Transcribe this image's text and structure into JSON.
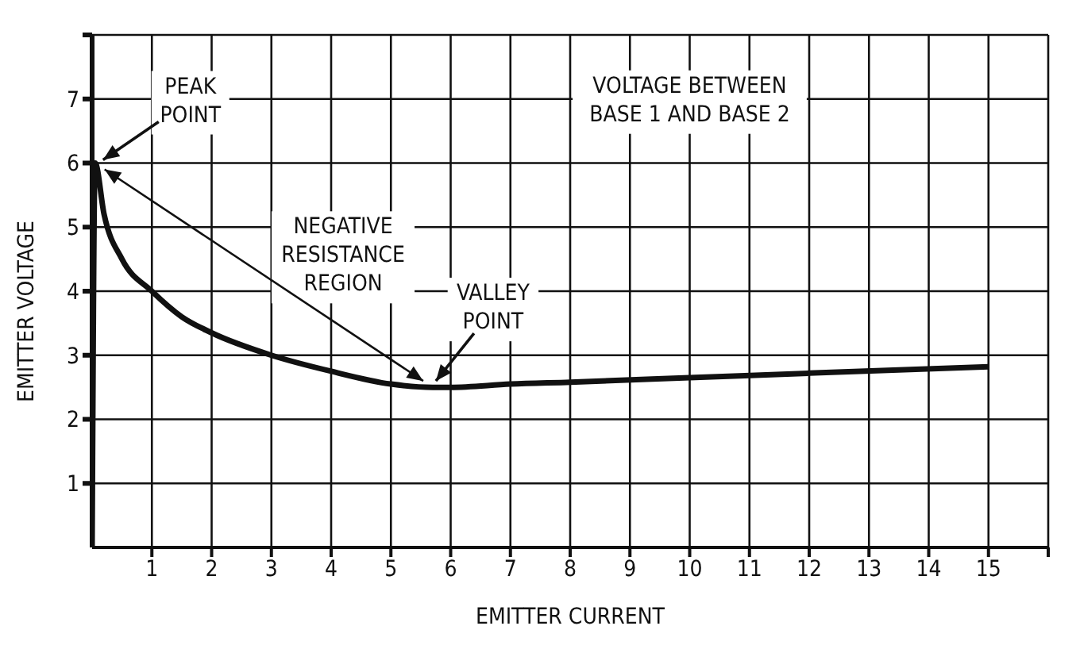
{
  "chart_data": {
    "type": "line",
    "xlabel": "EMITTER CURRENT",
    "ylabel": "EMITTER VOLTAGE",
    "x": [
      0,
      0.05,
      0.2,
      0.5,
      1,
      1.5,
      2,
      3,
      4,
      5,
      5.7,
      6,
      7,
      8,
      10,
      12,
      15
    ],
    "series": [
      {
        "color": "#111111",
        "values": [
          0,
          6,
          5.2,
          4.5,
          4.0,
          3.6,
          3.35,
          3.0,
          2.75,
          2.55,
          2.5,
          2.5,
          2.55,
          2.58,
          2.65,
          2.72,
          2.82
        ]
      }
    ],
    "xlim": [
      0,
      16
    ],
    "ylim": [
      0,
      8
    ],
    "xticks": [
      1,
      2,
      3,
      4,
      5,
      6,
      7,
      8,
      9,
      10,
      11,
      12,
      13,
      14,
      15,
      {
        "value": 16,
        "label": null
      }
    ],
    "yticks": [
      1,
      2,
      3,
      4,
      5,
      6,
      7,
      {
        "value": 8,
        "label": null
      }
    ],
    "grid": true,
    "marker": "none",
    "line_style": "solid",
    "annotations": [
      {
        "text": "PEAK\nPOINT",
        "x": 0.05,
        "y": 6
      },
      "NEGATIVE\nRESISTANCE\nREGION",
      {
        "text": "VALLEY\nPOINT",
        "x": 5.7,
        "y": 2.5
      },
      "VOLTAGE BETWEEN\nBASE 1 AND BASE 2"
    ]
  }
}
